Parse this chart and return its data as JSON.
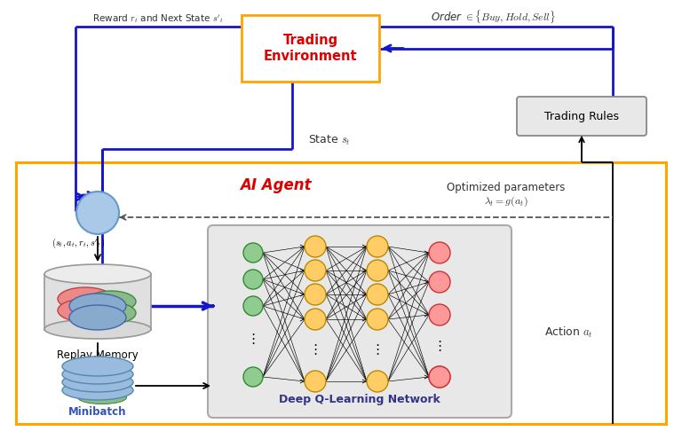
{
  "blue": "#1515CC",
  "orange": "#FFA500",
  "red": "#DD0000",
  "dnn_bg": "#e8e8e8",
  "agent_bg": "#ffffff",
  "input_color": "#90CC90",
  "input_edge": "#338833",
  "hidden_color": "#FFCC66",
  "hidden_edge": "#BB8800",
  "output_color": "#FF9999",
  "output_edge": "#CC3333",
  "agent_circle_fc": "#aac8e8",
  "agent_circle_ec": "#6699cc",
  "reward_label": "Reward $r_t$ and Next State $s'_t$",
  "state_label": "State $s_t$",
  "order_label": "Order $\\in \\{Buy, Hold, Sell\\}$",
  "optimized_label": "Optimized parameters\n$\\lambda_t = g(a_t)$",
  "action_label": "Action $a_t$",
  "tuple_label": "$(s_t, a_t, r_t, s'_t)$",
  "te_label": "Trading\nEnvironment",
  "ai_label": "AI Agent",
  "tr_label": "Trading Rules",
  "replay_label": "Replay Memory",
  "minibatch_label": "Minibatch",
  "dnn_label": "Deep Q-Learning Network"
}
